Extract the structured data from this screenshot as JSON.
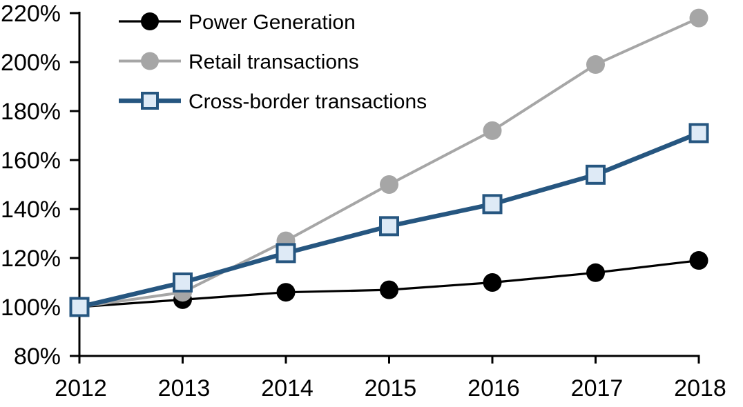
{
  "chart_data": {
    "type": "line",
    "title": "",
    "xlabel": "",
    "ylabel": "",
    "x": [
      2012,
      2013,
      2014,
      2015,
      2016,
      2017,
      2018
    ],
    "x_tick_labels": [
      "2012",
      "2013",
      "2014",
      "2015",
      "2016",
      "2017",
      "2018"
    ],
    "ylim": [
      80,
      220
    ],
    "ytick_step": 20,
    "y_tick_labels": [
      "80%",
      "100%",
      "120%",
      "140%",
      "160%",
      "180%",
      "200%",
      "220%"
    ],
    "grid": false,
    "background": "#FFFFFF",
    "axis_color": "#000000",
    "legend_position": "top-left",
    "series": [
      {
        "name": "Power Generation",
        "color": "#000000",
        "marker": "circle",
        "marker_fill": "#000000",
        "line_width": 3.2,
        "values": [
          100,
          103,
          106,
          107,
          110,
          114,
          119
        ]
      },
      {
        "name": "Retail transactions",
        "color": "#A6A6A6",
        "marker": "circle",
        "marker_fill": "#A6A6A6",
        "line_width": 4,
        "values": [
          100,
          106,
          127,
          150,
          172,
          199,
          218
        ]
      },
      {
        "name": "Cross-border transactions",
        "color": "#265680",
        "marker": "square",
        "marker_fill": "#DEEAF6",
        "line_width": 6.5,
        "values": [
          100,
          110,
          122,
          133,
          142,
          154,
          171
        ]
      }
    ]
  }
}
